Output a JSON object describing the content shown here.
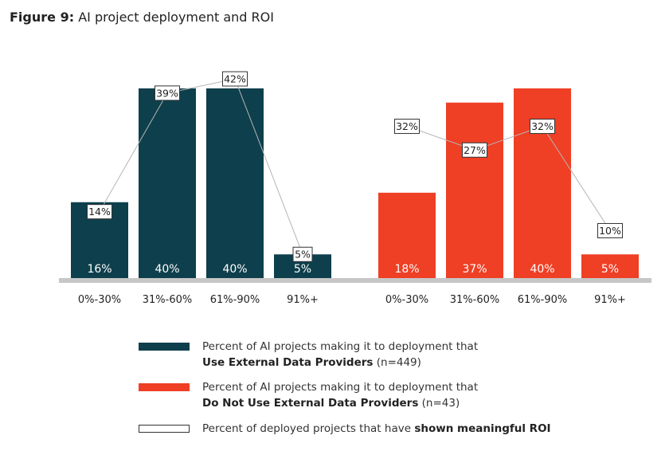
{
  "title": {
    "prefix": "Figure 9:",
    "text": " AI project deployment and ROI"
  },
  "colors": {
    "external": "#0e3f4c",
    "no_external": "#ef3f25",
    "roi_box": "#ffffff",
    "roi_line": "#b5b5b5",
    "baseline": "#c7c7c7"
  },
  "chart_data": {
    "type": "bar",
    "groups": [
      {
        "name": "Use External Data Providers",
        "categories": [
          "0%-30%",
          "31%-60%",
          "61%-90%",
          "91%+"
        ],
        "deployment": [
          16,
          40,
          40,
          5
        ],
        "deployment_labels": [
          "16%",
          "40%",
          "40%",
          "5%"
        ],
        "roi": [
          14,
          39,
          42,
          5
        ],
        "roi_labels": [
          "14%",
          "39%",
          "42%",
          "5%"
        ]
      },
      {
        "name": "Do Not Use External Data Providers",
        "categories": [
          "0%-30%",
          "31%-60%",
          "61%-90%",
          "91%+"
        ],
        "deployment": [
          18,
          37,
          40,
          5
        ],
        "deployment_labels": [
          "18%",
          "37%",
          "40%",
          "5%"
        ],
        "roi": [
          32,
          27,
          32,
          10
        ],
        "roi_labels": [
          "32%",
          "27%",
          "32%",
          "10%"
        ]
      }
    ],
    "ylim": [
      0,
      45
    ]
  },
  "legend": [
    {
      "line1": "Percent of AI projects making it to deployment that",
      "bold": "Use External Data Providers",
      "suffix": " (n=449)"
    },
    {
      "line1": "Percent of AI projects making it to deployment that",
      "bold": "Do Not Use External Data Providers",
      "suffix": " (n=43)"
    },
    {
      "line1": "Percent of deployed projects that have ",
      "bold": "shown meaningful ROI",
      "suffix": ""
    }
  ]
}
